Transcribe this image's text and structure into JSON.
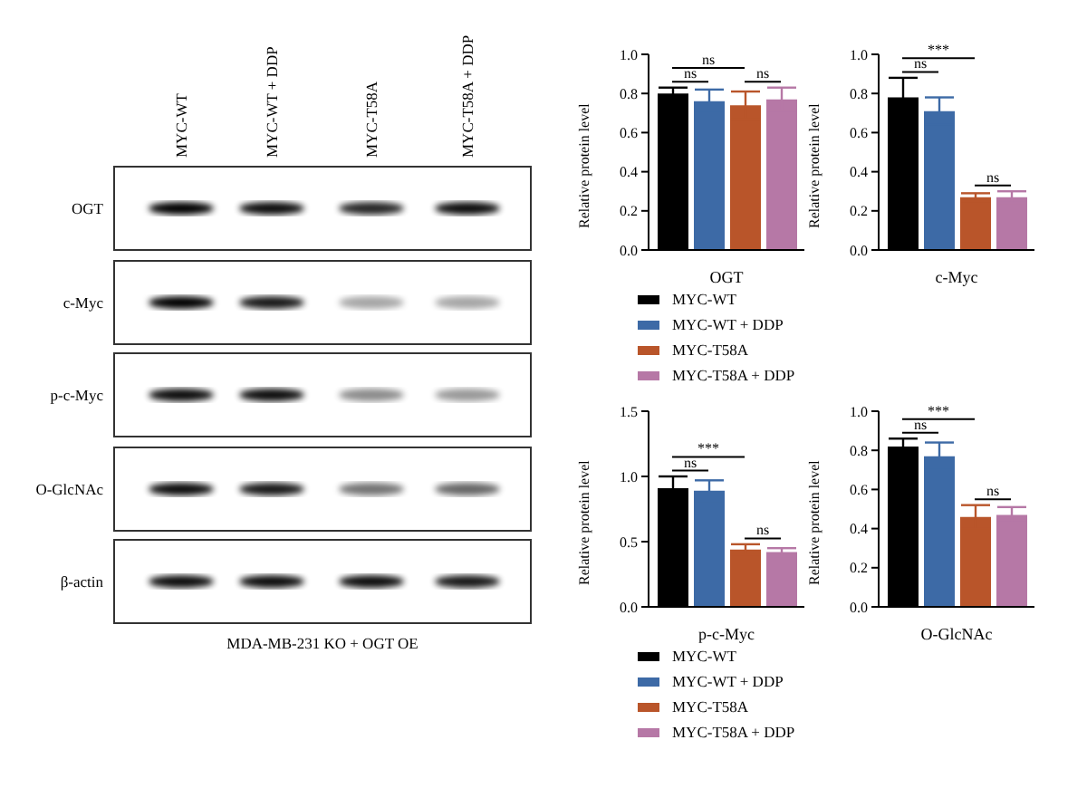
{
  "chart_data": [
    {
      "type": "other",
      "categories": [
        "MYC-WT",
        "MYC-WT + DDP",
        "MYC-T58A",
        "MYC-T58A + DDP"
      ],
      "y_categories": [
        "OGT",
        "c-Myc",
        "p-c-Myc",
        "O-GlcNAc",
        "β-actin"
      ],
      "xlabel": "MDA-MB-231 KO + OGT OE"
    },
    {
      "type": "bar",
      "xlabel": "OGT",
      "ylabel": "Relative protein level",
      "categories": [
        null
      ],
      "ylim": [
        0,
        1
      ],
      "yticks": [
        {
          "value": 0,
          "label": "0.0"
        },
        {
          "value": 0.2,
          "label": "0.2"
        },
        {
          "value": 0.4,
          "label": "0.4"
        },
        {
          "value": 0.6,
          "label": "0.6"
        },
        {
          "value": 0.8,
          "label": "0.8"
        },
        {
          "value": 1,
          "label": "1.0"
        }
      ],
      "legend": "bottom",
      "annotations": [
        "ns",
        "ns",
        "ns"
      ],
      "series": [
        {
          "name": "MYC-WT",
          "color": "#000000",
          "values": [
            0.8
          ],
          "errors": [
            0.03
          ]
        },
        {
          "name": "MYC-WT + DDP",
          "color": "#3d6aa6",
          "values": [
            0.76
          ],
          "errors": [
            0.06
          ]
        },
        {
          "name": "MYC-T58A",
          "color": "#b9552a",
          "values": [
            0.74
          ],
          "errors": [
            0.07
          ]
        },
        {
          "name": "MYC-T58A + DDP",
          "color": "#b678a6",
          "values": [
            0.77
          ],
          "errors": [
            0.06
          ]
        }
      ]
    },
    {
      "type": "bar",
      "xlabel": "c-Myc",
      "ylabel": "Relative protein level",
      "categories": [
        null
      ],
      "ylim": [
        0,
        1
      ],
      "yticks": [
        {
          "value": 0,
          "label": "0.0"
        },
        {
          "value": 0.2,
          "label": "0.2"
        },
        {
          "value": 0.4,
          "label": "0.4"
        },
        {
          "value": 0.6,
          "label": "0.6"
        },
        {
          "value": 0.8,
          "label": "0.8"
        },
        {
          "value": 1,
          "label": "1.0"
        }
      ],
      "annotations": [
        "***",
        "ns",
        "ns"
      ],
      "series": [
        {
          "color": "#000000",
          "values": [
            0.78
          ],
          "errors": [
            0.1
          ]
        },
        {
          "color": "#3d6aa6",
          "values": [
            0.71
          ],
          "errors": [
            0.07
          ]
        },
        {
          "color": "#b9552a",
          "values": [
            0.27
          ],
          "errors": [
            0.02
          ]
        },
        {
          "color": "#b678a6",
          "values": [
            0.27
          ],
          "errors": [
            0.03
          ]
        }
      ]
    },
    {
      "type": "bar",
      "xlabel": "p-c-Myc",
      "ylabel": "Relative protein level",
      "categories": [
        null
      ],
      "ylim": [
        0,
        1.5
      ],
      "yticks": [
        {
          "value": 0,
          "label": "0.0"
        },
        {
          "value": 0.5,
          "label": "0.5"
        },
        {
          "value": 1,
          "label": "1.0"
        },
        {
          "value": 1.5,
          "label": "1.5"
        }
      ],
      "legend": "bottom",
      "annotations": [
        "***",
        "ns",
        "ns"
      ],
      "series": [
        {
          "name": "MYC-WT",
          "color": "#000000",
          "values": [
            0.91
          ],
          "errors": [
            0.09
          ]
        },
        {
          "name": "MYC-WT + DDP",
          "color": "#3d6aa6",
          "values": [
            0.89
          ],
          "errors": [
            0.08
          ]
        },
        {
          "name": "MYC-T58A",
          "color": "#b9552a",
          "values": [
            0.44
          ],
          "errors": [
            0.04
          ]
        },
        {
          "name": "MYC-T58A + DDP",
          "color": "#b678a6",
          "values": [
            0.42
          ],
          "errors": [
            0.03
          ]
        }
      ]
    },
    {
      "type": "bar",
      "xlabel": "O-GlcNAc",
      "ylabel": "Relative protein level",
      "categories": [
        null
      ],
      "ylim": [
        0,
        1
      ],
      "yticks": [
        {
          "value": 0,
          "label": "0.0"
        },
        {
          "value": 0.2,
          "label": "0.2"
        },
        {
          "value": 0.4,
          "label": "0.4"
        },
        {
          "value": 0.6,
          "label": "0.6"
        },
        {
          "value": 0.8,
          "label": "0.8"
        },
        {
          "value": 1,
          "label": "1.0"
        }
      ],
      "annotations": [
        "***",
        "ns",
        "ns"
      ],
      "series": [
        {
          "color": "#000000",
          "values": [
            0.82
          ],
          "errors": [
            0.04
          ]
        },
        {
          "color": "#3d6aa6",
          "values": [
            0.77
          ],
          "errors": [
            0.07
          ]
        },
        {
          "color": "#b9552a",
          "values": [
            0.46
          ],
          "errors": [
            0.06
          ]
        },
        {
          "color": "#b678a6",
          "values": [
            0.47
          ],
          "errors": [
            0.04
          ]
        }
      ]
    }
  ]
}
